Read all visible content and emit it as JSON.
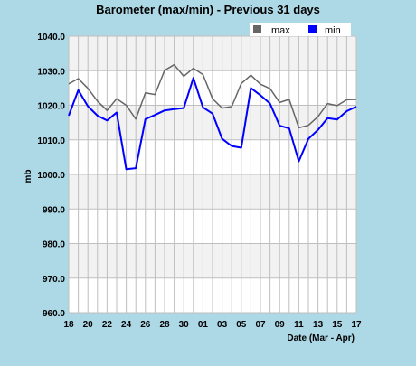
{
  "chart_data": {
    "type": "line",
    "title": "Barometer (max/min) - Previous 31 days",
    "xlabel": "Date (Mar - Apr)",
    "ylabel": "mb",
    "ylim": [
      960,
      1040
    ],
    "yticks": [
      "960.0",
      "970.0",
      "980.0",
      "990.0",
      "1000.0",
      "1010.0",
      "1020.0",
      "1030.0",
      "1040.0"
    ],
    "yticks_values": [
      960,
      970,
      980,
      990,
      1000,
      1010,
      1020,
      1030,
      1040
    ],
    "xtick_labels": [
      "18",
      "20",
      "22",
      "24",
      "26",
      "28",
      "30",
      "01",
      "03",
      "05",
      "07",
      "09",
      "11",
      "13",
      "15",
      "17"
    ],
    "days": [
      "18",
      "19",
      "20",
      "21",
      "22",
      "23",
      "24",
      "25",
      "26",
      "27",
      "28",
      "29",
      "30",
      "31",
      "01",
      "02",
      "03",
      "04",
      "05",
      "06",
      "07",
      "08",
      "09",
      "10",
      "11",
      "12",
      "13",
      "14",
      "15",
      "16",
      "17"
    ],
    "grid": true,
    "legend_position": "top-right",
    "series": [
      {
        "name": "max",
        "color": "#666666",
        "values": [
          1026.2,
          1027.7,
          1024.9,
          1021.2,
          1018.5,
          1021.9,
          1020.0,
          1016.0,
          1023.6,
          1023.1,
          1030.1,
          1031.7,
          1028.4,
          1030.7,
          1028.9,
          1021.9,
          1019.2,
          1019.6,
          1026.3,
          1028.7,
          1026.1,
          1024.8,
          1020.8,
          1021.7,
          1013.5,
          1014.2,
          1016.7,
          1020.5,
          1019.9,
          1021.6,
          1021.7
        ]
      },
      {
        "name": "min",
        "color": "#0000ff",
        "values": [
          1017.0,
          1024.4,
          1019.7,
          1017.0,
          1015.6,
          1017.9,
          1001.5,
          1001.8,
          1016.0,
          1017.2,
          1018.5,
          1018.9,
          1019.2,
          1027.9,
          1019.4,
          1017.6,
          1010.3,
          1008.2,
          1007.7,
          1025.0,
          1022.9,
          1020.5,
          1014.1,
          1013.3,
          1003.8,
          1010.3,
          1012.9,
          1016.3,
          1015.9,
          1018.3,
          1019.6
        ]
      }
    ]
  }
}
